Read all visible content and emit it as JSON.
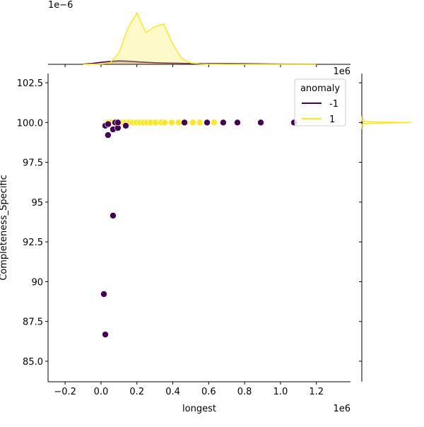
{
  "chart_data": [
    {
      "type": "scatter",
      "xlabel": "longest",
      "ylabel": "Completeness_Specific",
      "x_offset_label": "1e6",
      "legend_title": "anomaly",
      "legend": "upper right",
      "xlim": [
        -0.295,
        1.39
      ],
      "ylim": [
        83.71,
        103.08
      ],
      "xticks": [
        {
          "value": -0.2,
          "label": "−0.2"
        },
        {
          "value": 0,
          "label": "0.0"
        },
        {
          "value": 0.2,
          "label": "0.2"
        },
        {
          "value": 0.4,
          "label": "0.4"
        },
        {
          "value": 0.6,
          "label": "0.6"
        },
        {
          "value": 0.8,
          "label": "0.8"
        },
        {
          "value": 1,
          "label": "1.0"
        },
        {
          "value": 1.2,
          "label": "1.2"
        }
      ],
      "yticks": [
        {
          "value": 85,
          "label": "85.0"
        },
        87.5,
        90,
        92.5,
        95,
        97.5,
        {
          "value": 100,
          "label": "100.0"
        },
        102.5
      ],
      "series": [
        {
          "name": "-1",
          "color": "#440154",
          "x": [
            0.024,
            0.04,
            0.039,
            0.067,
            0.079,
            0.094,
            0.094,
            0.138,
            0.465,
            0.591,
            0.681,
            0.76,
            0.89,
            1.075,
            0.067,
            0.016,
            0.024
          ],
          "values": [
            99.8,
            99.9,
            99.21,
            99.57,
            100,
            99.66,
            100,
            99.8,
            100,
            100,
            100,
            100,
            100,
            100,
            94.15,
            89.22,
            86.68
          ]
        },
        {
          "name": "1",
          "color": "#fde725",
          "x": [
            0.039,
            0.059,
            0.079,
            0.098,
            0.118,
            0.138,
            0.157,
            0.177,
            0.197,
            0.217,
            0.236,
            0.256,
            0.276,
            0.303,
            0.335,
            0.354,
            0.394,
            0.433,
            0.472,
            0.512,
            0.551,
            0.591,
            0.63
          ],
          "values": [
            100,
            100,
            100,
            100,
            100,
            100,
            100,
            100,
            100,
            100,
            100,
            100,
            100,
            100,
            100,
            100,
            100,
            100,
            100,
            100,
            100,
            100,
            100
          ]
        }
      ]
    },
    {
      "type": "kde",
      "y_offset_label": "1e−6",
      "x_offset_label": "1e6",
      "xlim": [
        -0.295,
        1.39
      ],
      "ylim": [
        0,
        4.2
      ],
      "x": [
        -0.1,
        -0.05,
        0,
        0.05,
        0.1,
        0.15,
        0.2,
        0.25,
        0.3,
        0.35,
        0.4,
        0.45,
        0.5,
        0.55,
        0.6,
        0.7,
        0.8,
        0.9,
        1.0,
        1.1,
        1.2
      ],
      "series": [
        {
          "name": "-1",
          "color": "#440154",
          "values": [
            0.02,
            0.06,
            0.14,
            0.2,
            0.24,
            0.22,
            0.18,
            0.14,
            0.11,
            0.09,
            0.08,
            0.07,
            0.06,
            0.06,
            0.05,
            0.05,
            0.04,
            0.03,
            0.02,
            0.01,
            0.005
          ]
        },
        {
          "name": "1",
          "color": "#fde725",
          "values": [
            0,
            0.01,
            0.02,
            0.1,
            0.78,
            2.49,
            3.55,
            2.2,
            2.6,
            2.78,
            1.4,
            0.39,
            0.1,
            0.03,
            0.01,
            0,
            0,
            0,
            0,
            0,
            0
          ]
        }
      ]
    },
    {
      "type": "kde-horizontal",
      "xlim": [
        0,
        10
      ],
      "ylim": [
        83.71,
        103.08
      ],
      "y": [
        99.6,
        99.8,
        99.9,
        99.95,
        100,
        100.05,
        100.1,
        100.2,
        100.4
      ],
      "series": [
        {
          "name": "-1",
          "color": "#440154",
          "values": [
            0.05,
            0.08,
            0.1,
            0.1,
            0.12,
            0.1,
            0.1,
            0.08,
            0.05
          ]
        },
        {
          "name": "1",
          "color": "#fde725",
          "values": [
            0,
            0.01,
            0.1,
            1.5,
            10,
            1.5,
            0.1,
            0.01,
            0
          ]
        }
      ]
    }
  ]
}
